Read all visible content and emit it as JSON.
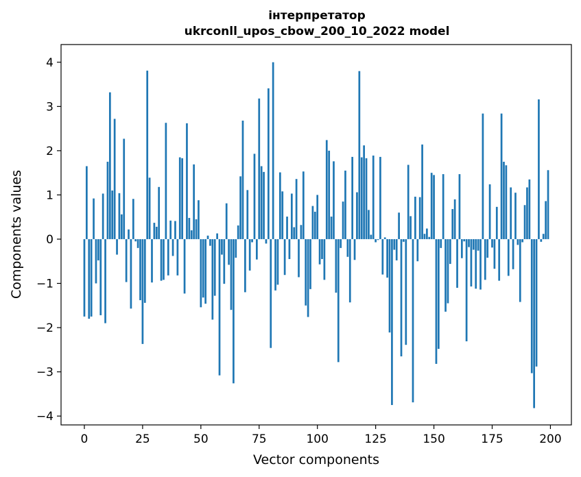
{
  "chart_data": {
    "type": "bar",
    "title_line1": "інтерпретатор",
    "title_line2": "ukrconll_upos_cbow_200_10_2022 model",
    "xlabel": "Vector components",
    "ylabel": "Components values",
    "xlim": [
      -10,
      209
    ],
    "ylim": [
      -4.2,
      4.4
    ],
    "xticks": [
      0,
      25,
      50,
      75,
      100,
      125,
      150,
      175,
      200
    ],
    "xtick_labels": [
      "0",
      "25",
      "50",
      "75",
      "100",
      "125",
      "150",
      "175",
      "200"
    ],
    "yticks": [
      -4,
      -3,
      -2,
      -1,
      0,
      1,
      2,
      3,
      4
    ],
    "ytick_labels": [
      "−4",
      "−3",
      "−2",
      "−1",
      "0",
      "1",
      "2",
      "3",
      "4"
    ],
    "bar_color": "#1f77b4",
    "grid": false,
    "x": [
      0,
      1,
      2,
      3,
      4,
      5,
      6,
      7,
      8,
      9,
      10,
      11,
      12,
      13,
      14,
      15,
      16,
      17,
      18,
      19,
      20,
      21,
      22,
      23,
      24,
      25,
      26,
      27,
      28,
      29,
      30,
      31,
      32,
      33,
      34,
      35,
      36,
      37,
      38,
      39,
      40,
      41,
      42,
      43,
      44,
      45,
      46,
      47,
      48,
      49,
      50,
      51,
      52,
      53,
      54,
      55,
      56,
      57,
      58,
      59,
      60,
      61,
      62,
      63,
      64,
      65,
      66,
      67,
      68,
      69,
      70,
      71,
      72,
      73,
      74,
      75,
      76,
      77,
      78,
      79,
      80,
      81,
      82,
      83,
      84,
      85,
      86,
      87,
      88,
      89,
      90,
      91,
      92,
      93,
      94,
      95,
      96,
      97,
      98,
      99,
      100,
      101,
      102,
      103,
      104,
      105,
      106,
      107,
      108,
      109,
      110,
      111,
      112,
      113,
      114,
      115,
      116,
      117,
      118,
      119,
      120,
      121,
      122,
      123,
      124,
      125,
      126,
      127,
      128,
      129,
      130,
      131,
      132,
      133,
      134,
      135,
      136,
      137,
      138,
      139,
      140,
      141,
      142,
      143,
      144,
      145,
      146,
      147,
      148,
      149,
      150,
      151,
      152,
      153,
      154,
      155,
      156,
      157,
      158,
      159,
      160,
      161,
      162,
      163,
      164,
      165,
      166,
      167,
      168,
      169,
      170,
      171,
      172,
      173,
      174,
      175,
      176,
      177,
      178,
      179,
      180,
      181,
      182,
      183,
      184,
      185,
      186,
      187,
      188,
      189,
      190,
      191,
      192,
      193,
      194,
      195,
      196,
      197,
      198,
      199
    ],
    "values": [
      -1.75,
      1.65,
      -1.8,
      -1.75,
      0.92,
      -1.0,
      -0.48,
      -1.72,
      1.03,
      -1.9,
      1.75,
      3.32,
      1.1,
      2.72,
      -0.35,
      1.04,
      0.56,
      2.27,
      -0.97,
      0.22,
      -1.57,
      0.91,
      -0.05,
      -0.2,
      -1.38,
      -2.37,
      -1.44,
      3.81,
      1.39,
      -0.98,
      0.37,
      0.28,
      1.18,
      -0.94,
      -0.92,
      2.63,
      -0.82,
      0.42,
      -0.38,
      0.41,
      -0.82,
      1.85,
      1.83,
      -1.23,
      2.62,
      0.48,
      0.2,
      1.69,
      0.45,
      0.88,
      -1.54,
      -1.32,
      -1.46,
      0.08,
      -0.15,
      -1.82,
      -1.28,
      0.13,
      -3.08,
      -0.35,
      -1.01,
      0.81,
      -0.58,
      -1.6,
      -3.26,
      -0.42,
      0.31,
      1.42,
      2.68,
      -1.2,
      1.11,
      -0.71,
      -0.07,
      1.93,
      -0.46,
      3.18,
      1.65,
      1.52,
      -0.1,
      3.41,
      -2.46,
      4.0,
      -1.16,
      -1.03,
      1.51,
      1.08,
      -0.81,
      0.51,
      -0.45,
      1.03,
      0.27,
      1.36,
      -0.86,
      0.32,
      1.53,
      -1.5,
      -1.76,
      -1.13,
      0.75,
      0.62,
      1.0,
      -0.57,
      -0.45,
      -0.92,
      2.24,
      2.0,
      0.51,
      1.76,
      -1.21,
      -2.78,
      -0.2,
      0.85,
      1.55,
      -0.4,
      -1.43,
      1.86,
      -0.47,
      1.06,
      3.8,
      1.85,
      2.12,
      1.83,
      0.66,
      0.1,
      1.89,
      -0.07,
      -0.02,
      1.86,
      -0.8,
      0.04,
      -0.87,
      -2.11,
      -3.75,
      -0.24,
      -0.48,
      0.6,
      -2.65,
      -0.06,
      -2.39,
      1.68,
      0.52,
      -3.69,
      0.96,
      -0.5,
      0.95,
      2.14,
      0.12,
      0.24,
      0.05,
      1.5,
      1.45,
      -2.82,
      -2.48,
      -0.2,
      1.47,
      -1.64,
      -1.45,
      -0.56,
      0.68,
      0.9,
      -1.1,
      1.47,
      -0.43,
      -0.05,
      -2.31,
      -0.18,
      -1.07,
      -0.24,
      -1.12,
      -0.26,
      -1.14,
      2.84,
      -0.92,
      -0.42,
      1.24,
      -0.19,
      -0.67,
      0.73,
      -0.94,
      2.84,
      1.75,
      1.67,
      -0.83,
      1.17,
      -0.68,
      1.05,
      -0.13,
      -1.42,
      -0.07,
      0.77,
      1.17,
      1.35,
      -3.03,
      -3.82,
      -2.88,
      3.16,
      -0.06,
      0.12,
      0.86,
      1.56
    ]
  }
}
